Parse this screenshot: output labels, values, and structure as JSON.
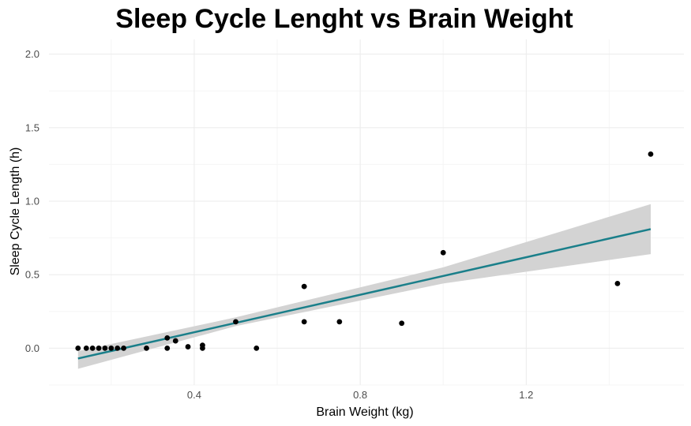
{
  "chart_data": {
    "type": "scatter",
    "title": "Sleep Cycle Lenght vs Brain Weight",
    "xlabel": "Brain Weight (kg)",
    "ylabel": "Sleep Cycle Length (h)",
    "xlim": [
      0.05,
      1.58
    ],
    "ylim": [
      -0.25,
      2.1
    ],
    "x_ticks": [
      0.4,
      0.8,
      1.2
    ],
    "x_tick_labels": [
      "0.4",
      "0.8",
      "1.2"
    ],
    "y_ticks": [
      0.0,
      0.5,
      1.0,
      1.5,
      2.0
    ],
    "y_tick_labels": [
      "0.0",
      "0.5",
      "1.0",
      "1.5",
      "2.0"
    ],
    "x_minor_ticks": [
      0.2,
      0.6,
      1.0,
      1.4
    ],
    "y_minor_ticks": [
      -0.25,
      0.25,
      0.75,
      1.25,
      1.75
    ],
    "grid": true,
    "legend": "none",
    "points": [
      {
        "x": 0.12,
        "y": 0.0
      },
      {
        "x": 0.14,
        "y": 0.0
      },
      {
        "x": 0.155,
        "y": 0.0
      },
      {
        "x": 0.17,
        "y": 0.0
      },
      {
        "x": 0.185,
        "y": 0.0
      },
      {
        "x": 0.2,
        "y": 0.0
      },
      {
        "x": 0.215,
        "y": 0.0
      },
      {
        "x": 0.23,
        "y": 0.0
      },
      {
        "x": 0.285,
        "y": 0.0
      },
      {
        "x": 0.335,
        "y": 0.07
      },
      {
        "x": 0.335,
        "y": 0.0
      },
      {
        "x": 0.355,
        "y": 0.05
      },
      {
        "x": 0.385,
        "y": 0.01
      },
      {
        "x": 0.42,
        "y": 0.02
      },
      {
        "x": 0.42,
        "y": 0.0
      },
      {
        "x": 0.5,
        "y": 0.18
      },
      {
        "x": 0.55,
        "y": 0.0
      },
      {
        "x": 0.665,
        "y": 0.42
      },
      {
        "x": 0.665,
        "y": 0.18
      },
      {
        "x": 0.75,
        "y": 0.18
      },
      {
        "x": 0.9,
        "y": 0.17
      },
      {
        "x": 1.0,
        "y": 0.65
      },
      {
        "x": 1.42,
        "y": 0.44
      },
      {
        "x": 1.5,
        "y": 1.32
      }
    ],
    "trend_line": {
      "x": [
        0.12,
        1.5
      ],
      "y": [
        -0.07,
        0.81
      ]
    },
    "confidence_band": {
      "x": [
        0.12,
        0.5,
        1.0,
        1.5
      ],
      "lower": [
        -0.14,
        0.15,
        0.44,
        0.64
      ],
      "upper": [
        -0.02,
        0.21,
        0.55,
        0.98
      ]
    },
    "colors": {
      "point": "#000000",
      "trend_line": "#1a7f8a",
      "band": "#d3d3d3",
      "grid_major": "#ebebeb",
      "grid_minor": "#f5f5f5"
    }
  }
}
